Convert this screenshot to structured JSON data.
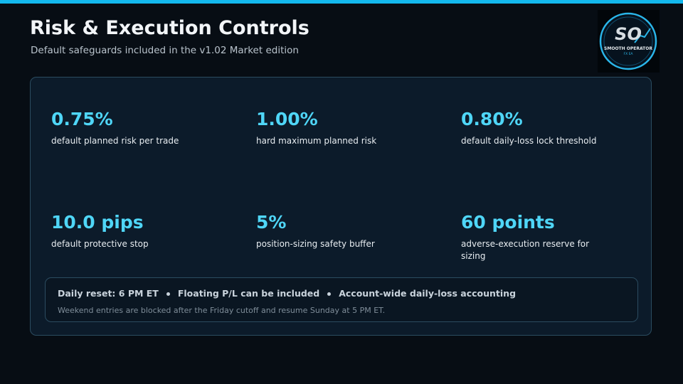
{
  "header": {
    "title": "Risk & Execution Controls",
    "subtitle": "Default safeguards included in the v1.02 Market edition"
  },
  "logo": {
    "monogram": "SO",
    "name": "SMOOTH OPERATOR",
    "product": "FX EA"
  },
  "metrics": [
    {
      "value": "0.75%",
      "label": "default planned risk per trade"
    },
    {
      "value": "1.00%",
      "label": "hard maximum planned risk"
    },
    {
      "value": "0.80%",
      "label": "default daily-loss lock threshold"
    },
    {
      "value": "10.0 pips",
      "label": "default protective stop"
    },
    {
      "value": "5%",
      "label": "position-sizing safety buffer"
    },
    {
      "value": "60 points",
      "label": "adverse-execution reserve for sizing"
    }
  ],
  "footer": {
    "highlights": [
      "Daily reset: 6 PM ET",
      "Floating P/L can be included",
      "Account-wide daily-loss accounting"
    ],
    "note": "Weekend entries are blocked after the Friday cutoff and resume Sunday at 5 PM ET."
  }
}
